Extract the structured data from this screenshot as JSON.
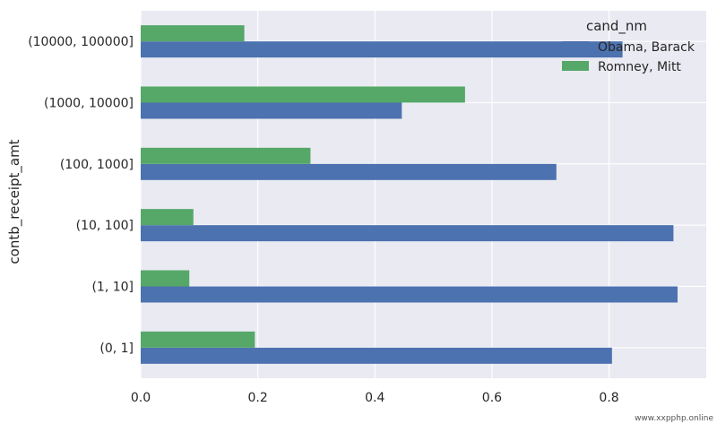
{
  "chart_data": {
    "type": "bar",
    "orientation": "horizontal",
    "categories": [
      "(0, 1]",
      "(1, 10]",
      "(10, 100]",
      "(100, 1000]",
      "(1000, 10000]",
      "(10000, 100000]"
    ],
    "series": [
      {
        "name": "Obama, Barack",
        "values": [
          0.805,
          0.917,
          0.91,
          0.71,
          0.446,
          0.823
        ],
        "color": "#4c72b0"
      },
      {
        "name": "Romney, Mitt",
        "values": [
          0.195,
          0.083,
          0.09,
          0.29,
          0.554,
          0.177
        ],
        "color": "#55a868"
      }
    ],
    "title": "",
    "xlabel": "",
    "ylabel": "contb_receipt_amt",
    "xlim": [
      0,
      0.966
    ],
    "xticks": [
      0.0,
      0.2,
      0.4,
      0.6,
      0.8
    ],
    "xtick_labels": [
      "0.0",
      "0.2",
      "0.4",
      "0.6",
      "0.8"
    ],
    "grid": true,
    "legend": {
      "title": "cand_nm",
      "placement": "top-right"
    },
    "background": "#eaeaf2",
    "grid_color": "#ffffff"
  },
  "watermark": "www.xxpphp.online"
}
